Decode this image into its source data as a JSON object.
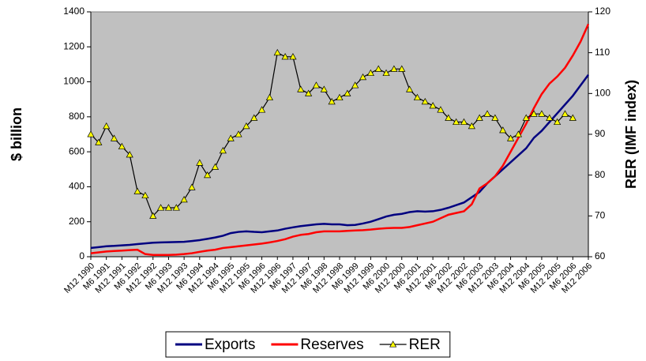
{
  "chart_data": {
    "type": "line",
    "categories": [
      "M12 1990",
      null,
      "M6 1991",
      null,
      "M12 1991",
      null,
      "M6 1992",
      null,
      "M12 1992",
      null,
      "M6 1993",
      null,
      "M12 1993",
      null,
      "M6 1994",
      null,
      "M12 1994",
      null,
      "M6 1995",
      null,
      "M12 1995",
      null,
      "M6 1996",
      null,
      "M12 1996",
      null,
      "M6 1997",
      null,
      "M12 1997",
      null,
      "M6 1998",
      null,
      "M12 1998",
      null,
      "M6 1999",
      null,
      "M12 1999",
      null,
      "M6 2000",
      null,
      "M12 2000",
      null,
      "M6 2001",
      null,
      "M12 2001",
      null,
      "M6 2002",
      null,
      "M12 2002",
      null,
      "M6 2003",
      null,
      "M12 2003",
      null,
      "M6 2004",
      null,
      "M12 2004",
      null,
      "M6 2005",
      null,
      "M12 2005",
      null,
      "M6 2006",
      null,
      "M12 2006"
    ],
    "series": [
      {
        "name": "Exports",
        "color": "#000080",
        "values": [
          50,
          55,
          60,
          62,
          65,
          68,
          72,
          76,
          80,
          82,
          83,
          84,
          85,
          90,
          95,
          102,
          110,
          120,
          135,
          142,
          145,
          142,
          140,
          145,
          150,
          160,
          168,
          175,
          180,
          185,
          188,
          185,
          185,
          180,
          182,
          190,
          200,
          215,
          230,
          240,
          245,
          255,
          260,
          258,
          260,
          268,
          280,
          295,
          310,
          340,
          370,
          420,
          460,
          500,
          540,
          580,
          620,
          680,
          720,
          770,
          820,
          870,
          920,
          980,
          1040
        ]
      },
      {
        "name": "Reserves",
        "color": "#ff0000",
        "values": [
          20,
          25,
          30,
          33,
          35,
          38,
          40,
          15,
          10,
          10,
          10,
          12,
          15,
          20,
          28,
          35,
          40,
          50,
          55,
          60,
          65,
          70,
          75,
          82,
          90,
          100,
          115,
          125,
          130,
          140,
          145,
          145,
          145,
          148,
          150,
          152,
          155,
          160,
          163,
          165,
          165,
          170,
          180,
          190,
          200,
          220,
          240,
          250,
          260,
          300,
          390,
          420,
          460,
          520,
          600,
          680,
          760,
          850,
          930,
          990,
          1030,
          1080,
          1150,
          1230,
          1330
        ]
      },
      {
        "name": "RER",
        "color": "#000000",
        "marker_color": "#ffff00",
        "axis": "y2",
        "values": [
          90,
          88,
          92,
          89,
          87,
          85,
          76,
          75,
          70,
          72,
          72,
          72,
          74,
          77,
          83,
          80,
          82,
          86,
          89,
          90,
          92,
          94,
          96,
          99,
          110,
          109,
          109,
          101,
          100,
          102,
          101,
          98,
          99,
          100,
          102,
          104,
          105,
          106,
          105,
          106,
          106,
          101,
          99,
          98,
          97,
          96,
          94,
          93,
          93,
          92,
          94,
          95,
          94,
          91,
          89,
          90,
          94,
          95,
          95,
          94,
          93,
          95,
          94,
          null,
          null
        ]
      }
    ],
    "ylabel": "$ billion",
    "y2label": "RER (IMF index)",
    "ylim": [
      0,
      1400
    ],
    "yticks": [
      0,
      200,
      400,
      600,
      800,
      1000,
      1200,
      1400
    ],
    "y2lim": [
      60,
      120
    ],
    "y2ticks": [
      60,
      70,
      80,
      90,
      100,
      110,
      120
    ],
    "plot_background": "#c0c0c0",
    "legend": "bottom",
    "grid": false
  }
}
